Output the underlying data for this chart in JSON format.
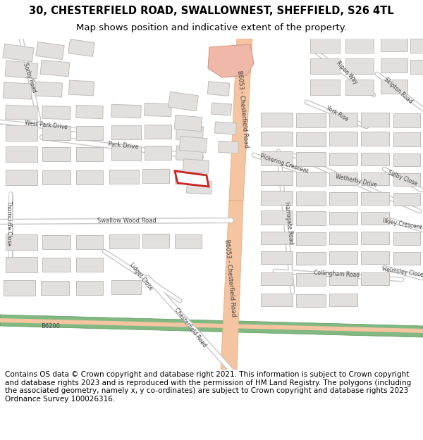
{
  "title_line1": "30, CHESTERFIELD ROAD, SWALLOWNEST, SHEFFIELD, S26 4TL",
  "title_line2": "Map shows position and indicative extent of the property.",
  "footer_text": "Contains OS data © Crown copyright and database right 2021. This information is subject to Crown copyright and database rights 2023 and is reproduced with the permission of HM Land Registry. The polygons (including the associated geometry, namely x, y co-ordinates) are subject to Crown copyright and database rights 2023 Ordnance Survey 100026316.",
  "bg_color": "#ffffff",
  "map_bg": "#f2f0ee",
  "road_main_color": "#f5c4a0",
  "road_main_edge": "#e0a878",
  "road_minor_color": "#ffffff",
  "road_minor_edge": "#c8c8c8",
  "building_fill": "#e2e0de",
  "building_edge": "#c0bebb",
  "green_color": "#82b882",
  "green_edge": "#5a9a5a",
  "highlight_fill": "#ffffff",
  "highlight_edge": "#cc2222",
  "pink_area_color": "#f0b8a8",
  "pink_area_edge": "#d09888",
  "title_fontsize": 10.5,
  "subtitle_fontsize": 9.5,
  "footer_fontsize": 7.5,
  "label_color": "#444444",
  "label_fontsize": 6.0,
  "dpi": 100,
  "fig_width": 6.0,
  "fig_height": 6.25
}
